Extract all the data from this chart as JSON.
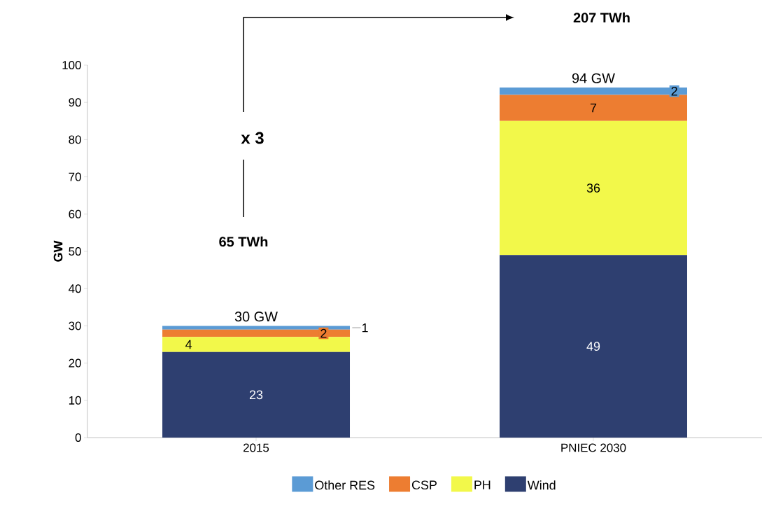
{
  "chart_data": {
    "type": "bar",
    "stacked": true,
    "ylabel": "GW",
    "categories": [
      "2015",
      "PNIEC 2030"
    ],
    "series": [
      {
        "name": "Wind",
        "color": "#2e3f70",
        "values": [
          23,
          49
        ]
      },
      {
        "name": "PH",
        "color": "#f2f84a",
        "values": [
          4,
          36
        ]
      },
      {
        "name": "CSP",
        "color": "#ed7d31",
        "values": [
          2,
          7
        ]
      },
      {
        "name": "Other RES",
        "color": "#5b9bd5",
        "values": [
          1,
          2
        ]
      }
    ],
    "data_labels": true,
    "totals": [
      "30 GW",
      "94 GW"
    ],
    "ylim": [
      0,
      100
    ],
    "yticks": [
      0,
      10,
      20,
      30,
      40,
      50,
      60,
      70,
      80,
      90,
      100
    ],
    "grid": false,
    "legend": "bottom",
    "annotations": [
      "207 TWh",
      "x 3",
      "65 TWh"
    ]
  }
}
